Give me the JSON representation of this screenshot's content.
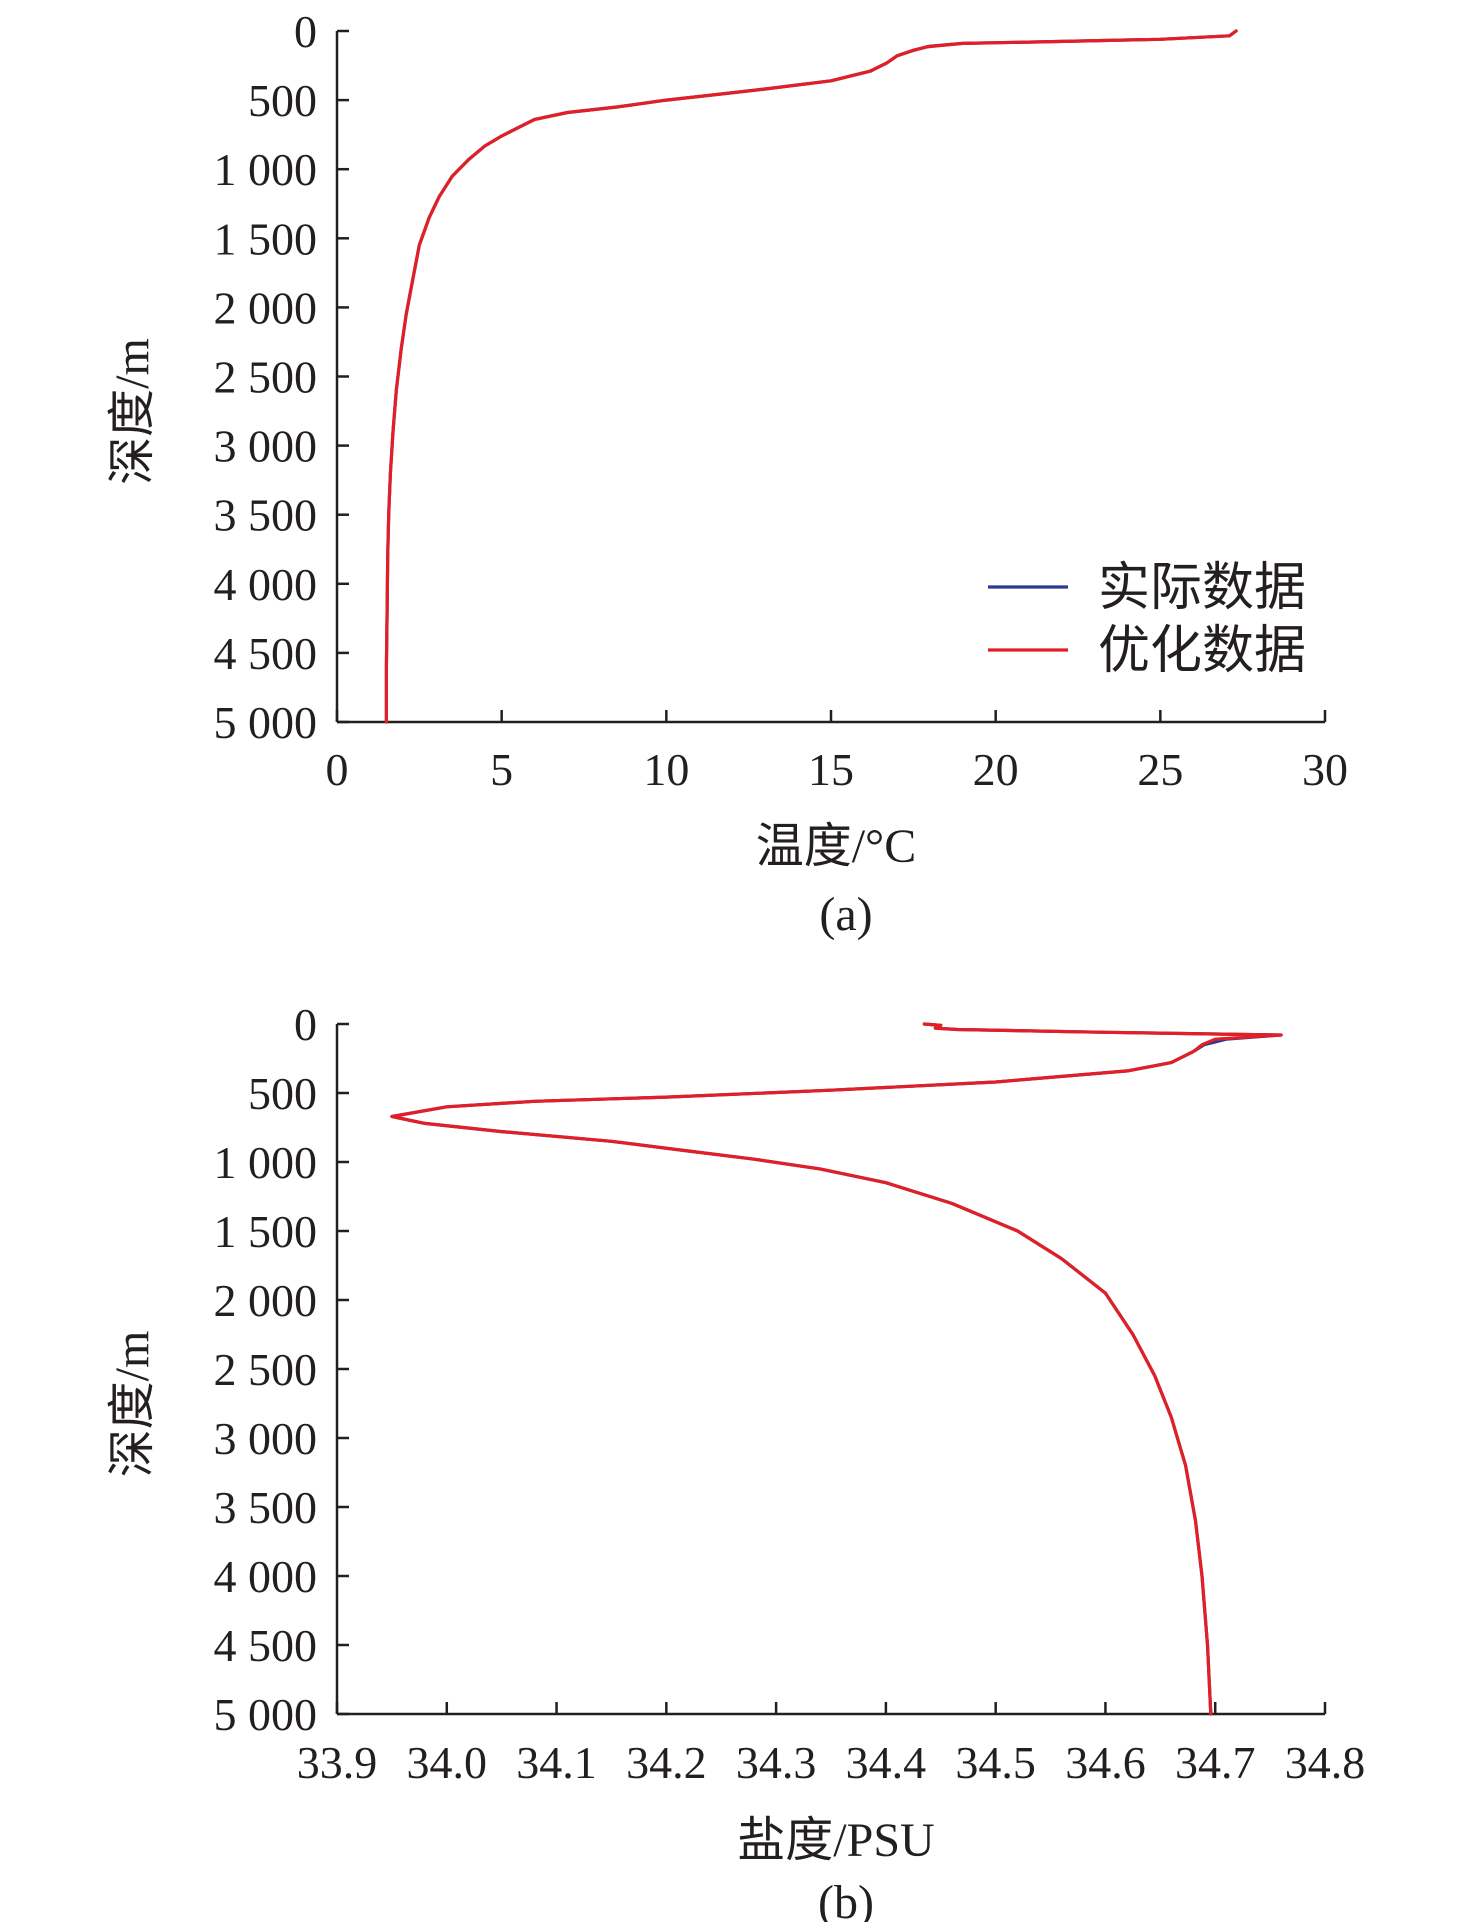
{
  "colors": {
    "actual": "#2b3990",
    "optimized": "#e31f26",
    "axis": "#231f20"
  },
  "chart_data": [
    {
      "type": "line",
      "panel_label": "(a)",
      "xlabel": "温度/°C",
      "ylabel": "深度/m",
      "xlim": [
        0,
        30
      ],
      "ylim": [
        0,
        5000
      ],
      "y_inverted": true,
      "x_ticks": [
        0,
        5,
        10,
        15,
        20,
        25,
        30
      ],
      "x_tick_labels": [
        "0",
        "5",
        "10",
        "15",
        "20",
        "25",
        "30"
      ],
      "y_ticks": [
        0,
        500,
        1000,
        1500,
        2000,
        2500,
        3000,
        3500,
        4000,
        4500,
        5000
      ],
      "y_tick_labels": [
        "0",
        "500",
        "1 000",
        "1 500",
        "2 000",
        "2 500",
        "3 000",
        "3 500",
        "4 000",
        "4 500",
        "5 000"
      ],
      "legend": {
        "position": "lower-right",
        "entries": [
          "实际数据",
          "优化数据"
        ]
      },
      "series": [
        {
          "name": "实际数据",
          "color": "#2b3990",
          "x": [
            27.3,
            27.1,
            25.0,
            21.0,
            19.0,
            18.0,
            17.5,
            17.0,
            16.7,
            16.2,
            15.0,
            13.0,
            11.5,
            10.0,
            8.5,
            7.0,
            6.0,
            5.5,
            5.0,
            4.5,
            4.0,
            3.5,
            3.1,
            2.8,
            2.5,
            2.3,
            2.1,
            1.95,
            1.8,
            1.7,
            1.62,
            1.57,
            1.54,
            1.52,
            1.5,
            1.5
          ],
          "y": [
            0,
            35,
            60,
            80,
            90,
            110,
            140,
            180,
            230,
            290,
            360,
            420,
            460,
            500,
            550,
            590,
            640,
            700,
            760,
            830,
            930,
            1050,
            1200,
            1350,
            1550,
            1800,
            2050,
            2300,
            2600,
            2900,
            3200,
            3500,
            3800,
            4200,
            4600,
            5000
          ]
        },
        {
          "name": "优化数据",
          "color": "#e31f26",
          "x": [
            27.3,
            27.1,
            25.0,
            21.0,
            19.0,
            17.9,
            17.5,
            17.0,
            16.7,
            16.2,
            15.0,
            13.0,
            11.5,
            10.0,
            8.5,
            7.0,
            6.0,
            5.5,
            5.0,
            4.5,
            4.0,
            3.5,
            3.1,
            2.8,
            2.5,
            2.3,
            2.1,
            1.95,
            1.8,
            1.7,
            1.62,
            1.57,
            1.54,
            1.52,
            1.5,
            1.5
          ],
          "y": [
            0,
            35,
            60,
            80,
            90,
            115,
            140,
            180,
            230,
            290,
            360,
            420,
            460,
            500,
            550,
            590,
            640,
            700,
            760,
            830,
            930,
            1050,
            1200,
            1350,
            1550,
            1800,
            2050,
            2300,
            2600,
            2900,
            3200,
            3500,
            3800,
            4200,
            4600,
            5000
          ]
        }
      ]
    },
    {
      "type": "line",
      "panel_label": "(b)",
      "xlabel": "盐度/PSU",
      "ylabel": "深度/m",
      "xlim": [
        33.9,
        34.8
      ],
      "ylim": [
        0,
        5000
      ],
      "y_inverted": true,
      "x_ticks": [
        33.9,
        34.0,
        34.1,
        34.2,
        34.3,
        34.4,
        34.5,
        34.6,
        34.7,
        34.8
      ],
      "x_tick_labels": [
        "33.9",
        "34.0",
        "34.1",
        "34.2",
        "34.3",
        "34.4",
        "34.5",
        "34.6",
        "34.7",
        "34.8"
      ],
      "y_ticks": [
        0,
        500,
        1000,
        1500,
        2000,
        2500,
        3000,
        3500,
        4000,
        4500,
        5000
      ],
      "y_tick_labels": [
        "0",
        "500",
        "1 000",
        "1 500",
        "2 000",
        "2 500",
        "3 000",
        "3 500",
        "4 000",
        "4 500",
        "5 000"
      ],
      "series": [
        {
          "name": "实际数据",
          "color": "#2b3990",
          "x": [
            34.435,
            34.45,
            34.445,
            34.465,
            34.6,
            34.76,
            34.71,
            34.69,
            34.68,
            34.66,
            34.62,
            34.5,
            34.35,
            34.2,
            34.08,
            34.0,
            33.95,
            33.98,
            34.05,
            34.15,
            34.22,
            34.28,
            34.34,
            34.4,
            34.46,
            34.52,
            34.56,
            34.6,
            34.625,
            34.645,
            34.66,
            34.673,
            34.682,
            34.688,
            34.693,
            34.696
          ],
          "y": [
            0,
            10,
            30,
            40,
            60,
            80,
            110,
            150,
            200,
            280,
            340,
            420,
            480,
            530,
            560,
            600,
            670,
            720,
            780,
            850,
            920,
            980,
            1050,
            1150,
            1300,
            1500,
            1700,
            1950,
            2250,
            2550,
            2850,
            3200,
            3600,
            4000,
            4500,
            5000
          ]
        },
        {
          "name": "优化数据",
          "color": "#e31f26",
          "x": [
            34.435,
            34.45,
            34.445,
            34.465,
            34.6,
            34.76,
            34.7,
            34.688,
            34.68,
            34.66,
            34.62,
            34.5,
            34.35,
            34.2,
            34.08,
            34.0,
            33.95,
            33.98,
            34.05,
            34.15,
            34.22,
            34.28,
            34.34,
            34.4,
            34.46,
            34.52,
            34.56,
            34.6,
            34.625,
            34.645,
            34.66,
            34.673,
            34.682,
            34.688,
            34.693,
            34.696
          ],
          "y": [
            0,
            10,
            30,
            40,
            60,
            80,
            110,
            150,
            200,
            280,
            340,
            420,
            480,
            530,
            560,
            600,
            670,
            720,
            780,
            850,
            920,
            980,
            1050,
            1150,
            1300,
            1500,
            1700,
            1950,
            2250,
            2550,
            2850,
            3200,
            3600,
            4000,
            4500,
            5000
          ]
        }
      ]
    }
  ]
}
